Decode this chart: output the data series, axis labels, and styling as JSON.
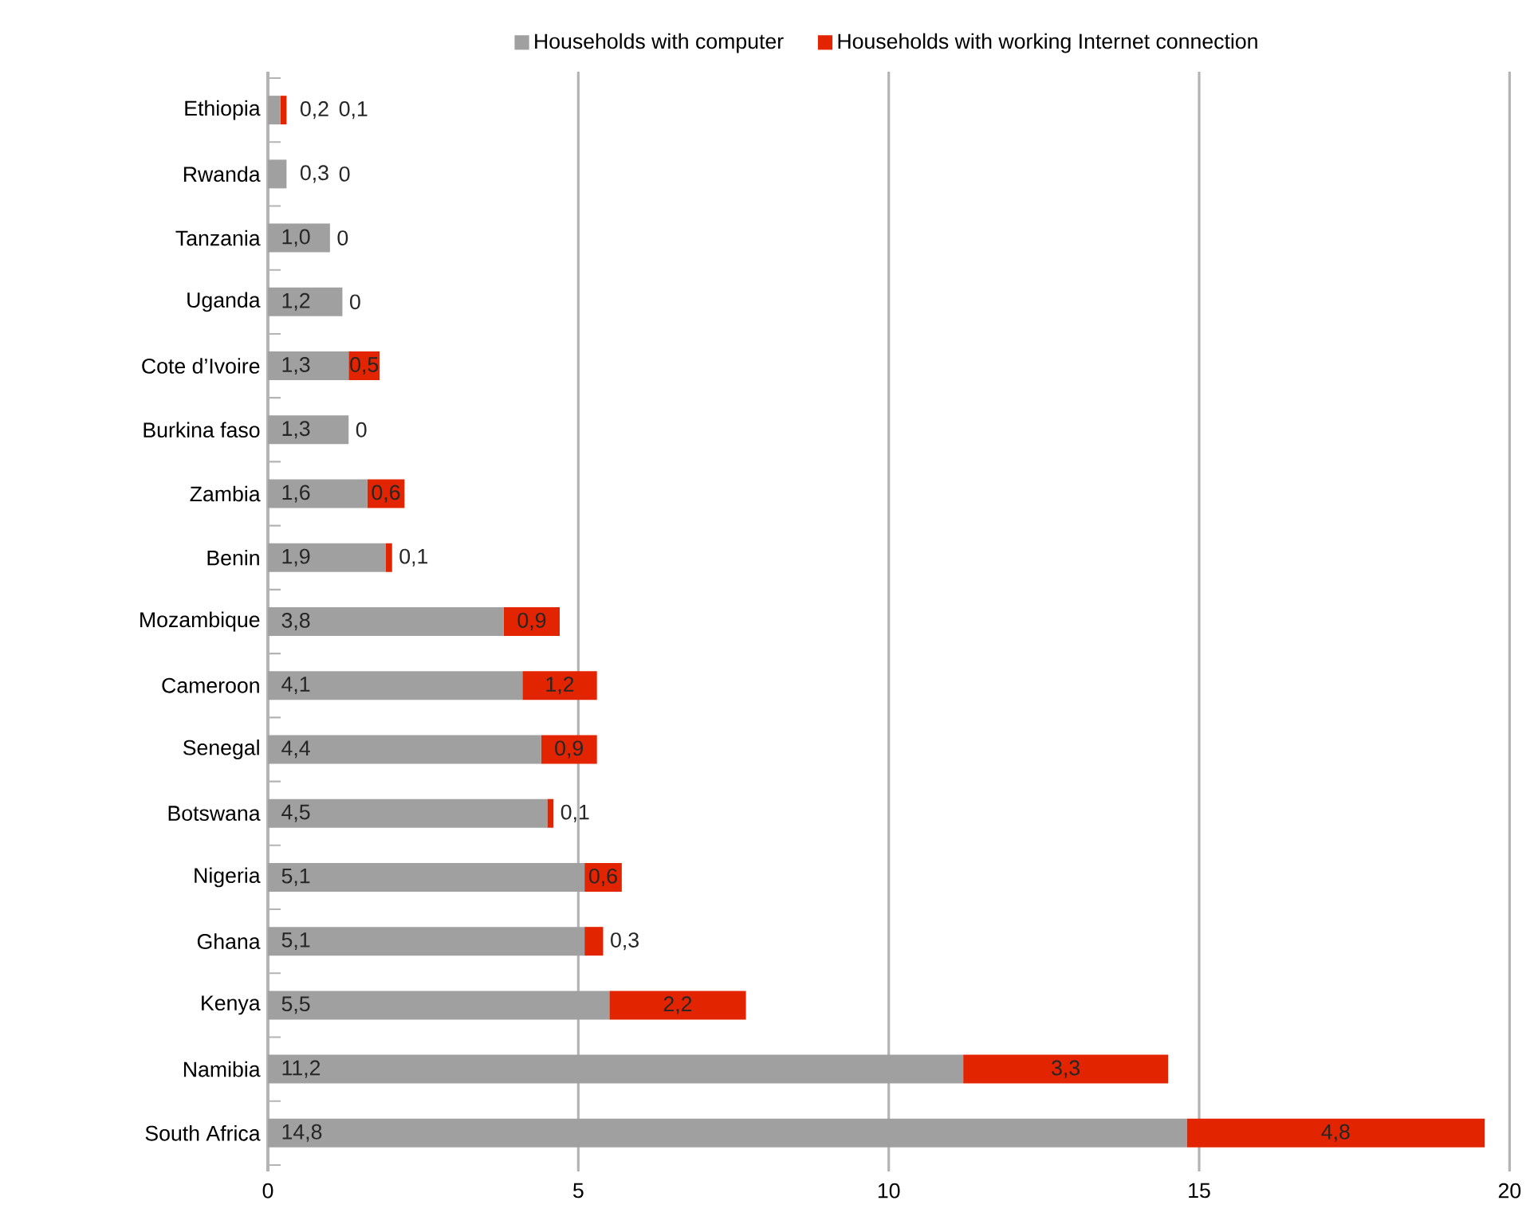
{
  "chart_data": {
    "type": "bar",
    "orientation": "horizontal",
    "stacked": true,
    "categories": [
      "Ethiopia",
      "Rwanda",
      "Tanzania",
      "Uganda",
      "Cote d’Ivoire",
      "Burkina faso",
      "Zambia",
      "Benin",
      "Mozambique",
      "Cameroon",
      "Senegal",
      "Botswana",
      "Nigeria",
      "Ghana",
      "Kenya",
      "Namibia",
      "South Africa"
    ],
    "series": [
      {
        "name": "Households with computer",
        "color": "#a0a0a0",
        "values": [
          0.2,
          0.3,
          1.0,
          1.2,
          1.3,
          1.3,
          1.6,
          1.9,
          3.8,
          4.1,
          4.4,
          4.5,
          5.1,
          5.1,
          5.5,
          11.2,
          14.8
        ],
        "value_labels": [
          "0,2",
          "0,3",
          "1,0",
          "1,2",
          "1,3",
          "1,3",
          "1,6",
          "1,9",
          "3,8",
          "4,1",
          "4,4",
          "4,5",
          "5,1",
          "5,1",
          "5,5",
          "11,2",
          "14,8"
        ]
      },
      {
        "name": "Households with working Internet connection",
        "color": "#e32400",
        "values": [
          0.1,
          0,
          0,
          0,
          0.5,
          0,
          0.6,
          0.1,
          0.9,
          1.2,
          0.9,
          0.1,
          0.6,
          0.3,
          2.2,
          3.3,
          4.8
        ],
        "value_labels": [
          "0,1",
          "0",
          "0",
          "0",
          "0,5",
          "0",
          "0,6",
          "0,1",
          "0,9",
          "1,2",
          "0,9",
          "0,1",
          "0,6",
          "0,3",
          "2,2",
          "3,3",
          "4,8"
        ]
      }
    ],
    "xlim": [
      0,
      20
    ],
    "xticks": [
      0,
      5,
      10,
      15,
      20
    ],
    "grid": "x",
    "legend": "top"
  }
}
